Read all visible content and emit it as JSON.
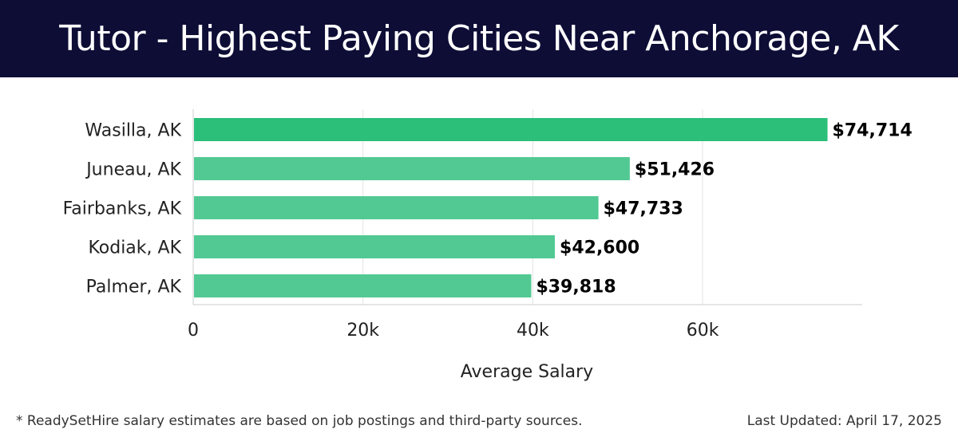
{
  "header": {
    "title": "Tutor - Highest Paying Cities Near Anchorage, AK"
  },
  "chart_data": {
    "type": "bar",
    "orientation": "horizontal",
    "title": "Tutor - Highest Paying Cities Near Anchorage, AK",
    "xlabel": "Average Salary",
    "ylabel": "",
    "categories": [
      "Wasilla, AK",
      "Juneau, AK",
      "Fairbanks, AK",
      "Kodiak, AK",
      "Palmer, AK"
    ],
    "values": [
      74714,
      51426,
      47733,
      42600,
      39818
    ],
    "value_labels": [
      "$74,714",
      "$51,426",
      "$47,733",
      "$42,600",
      "$39,818"
    ],
    "xlim": [
      0,
      78800
    ],
    "xticks": [
      0,
      20000,
      40000,
      60000
    ],
    "xtick_labels": [
      "0",
      "20k",
      "40k",
      "60k"
    ],
    "grid": true,
    "colors": {
      "top_bar": "#2bbf7a",
      "bar": "#52c993"
    }
  },
  "footer": {
    "note": "* ReadySetHire salary estimates are based on job postings and third-party sources.",
    "updated": "Last Updated: April 17, 2025"
  }
}
